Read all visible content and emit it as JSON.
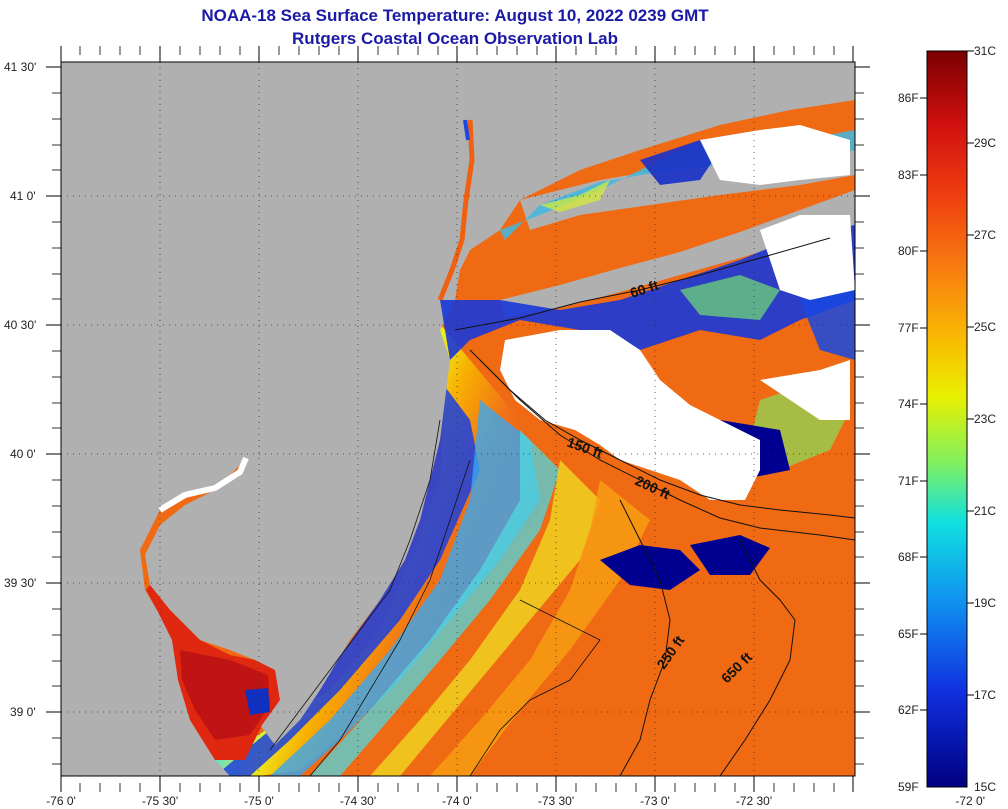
{
  "title": {
    "line1": "NOAA-18 Sea Surface Temperature:  August 10, 2022 0239 GMT",
    "line2": "Rutgers Coastal Ocean Observation Lab"
  },
  "map": {
    "lon_range": [
      -76.0,
      -72.0
    ],
    "lat_range": [
      38.75,
      41.5
    ],
    "lon_ticks": [
      "-76 0'",
      "-75 30'",
      "-75 0'",
      "-74 30'",
      "-74 0'",
      "-73 30'",
      "-73 0'",
      "-72 30'",
      "-72 0'"
    ],
    "lat_ticks": [
      "41 30'",
      "41 0'",
      "40 30'",
      "40 0'",
      "39 30'",
      "39 0'"
    ],
    "land_color": "#b0b0b0",
    "cloud_color": "#ffffff",
    "isobaths": [
      "60 ft",
      "150 ft",
      "200 ft",
      "250 ft",
      "650 ft"
    ]
  },
  "colorbar": {
    "fahrenheit": [
      "86F",
      "83F",
      "80F",
      "77F",
      "74F",
      "71F",
      "68F",
      "65F",
      "62F",
      "59F"
    ],
    "celsius": [
      "31C",
      "29C",
      "27C",
      "25C",
      "23C",
      "21C",
      "19C",
      "17C",
      "15C"
    ],
    "colors_top_to_bottom": [
      "#7a0000",
      "#d01010",
      "#f04010",
      "#f88010",
      "#f8c000",
      "#e8f000",
      "#80f060",
      "#10e0e0",
      "#1090f0",
      "#1030e0",
      "#000080"
    ]
  }
}
